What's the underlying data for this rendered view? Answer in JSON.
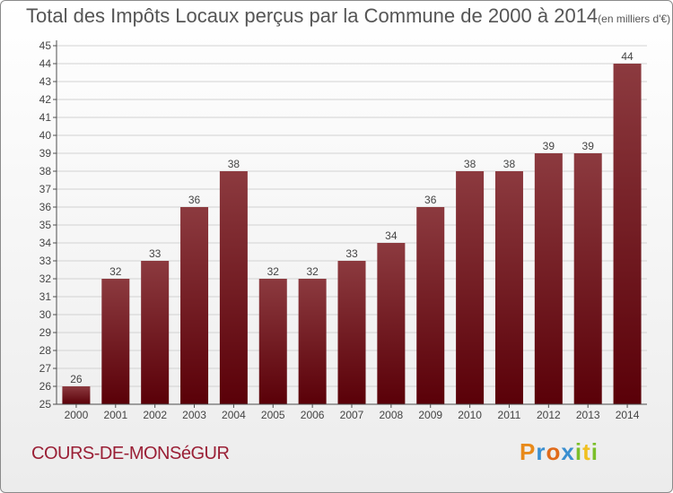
{
  "header": {
    "title": "Total des Impôts Locaux perçus par la Commune de 2000 à 2014",
    "unit": "(en milliers d'€)"
  },
  "footer": {
    "commune": "COURS-DE-MONSéGUR",
    "logo_letters": [
      "P",
      "r",
      "o",
      "x",
      "i",
      "t",
      "i"
    ]
  },
  "colors": {
    "bar_top": "#8c3a3f",
    "bar_bottom": "#5a0008",
    "grid": "#d2d2d2",
    "axis": "#4d4d4d",
    "text": "#444444",
    "commune": "#9a1f35"
  },
  "chart_data": {
    "type": "bar",
    "title": "Total des Impôts Locaux perçus par la Commune de 2000 à 2014",
    "xlabel": "",
    "ylabel": "",
    "categories": [
      "2000",
      "2001",
      "2002",
      "2003",
      "2004",
      "2005",
      "2006",
      "2007",
      "2008",
      "2009",
      "2010",
      "2011",
      "2012",
      "2013",
      "2014"
    ],
    "values": [
      26,
      32,
      33,
      36,
      38,
      32,
      32,
      33,
      34,
      36,
      38,
      38,
      39,
      39,
      44
    ],
    "ylim": [
      25,
      45
    ],
    "yticks": [
      25,
      26,
      27,
      28,
      29,
      30,
      31,
      32,
      33,
      34,
      35,
      36,
      37,
      38,
      39,
      40,
      41,
      42,
      43,
      44,
      45
    ],
    "grid": true
  }
}
